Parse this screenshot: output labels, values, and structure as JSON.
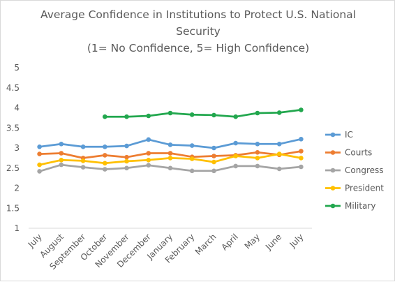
{
  "chart_data": {
    "type": "line",
    "title_lines": [
      "Average Confidence in Institutions to Protect U.S. National",
      "Security",
      "(1= No Confidence, 5= High Confidence)"
    ],
    "categories": [
      "July",
      "August",
      "September",
      "October",
      "November",
      "December",
      "January",
      "February",
      "March",
      "April",
      "May",
      "June",
      "July"
    ],
    "ylim": [
      1,
      5
    ],
    "yticks": [
      "1",
      "1.5",
      "2",
      "2.5",
      "3",
      "3.5",
      "4",
      "4.5",
      "5"
    ],
    "grid": false,
    "legend_position": "right",
    "series": [
      {
        "name": "IC",
        "color": "#5B9BD5",
        "values": [
          3.03,
          3.1,
          3.03,
          3.03,
          3.05,
          3.21,
          3.08,
          3.06,
          3.0,
          3.12,
          3.1,
          3.1,
          3.22
        ]
      },
      {
        "name": "Courts",
        "color": "#ED7D31",
        "values": [
          2.85,
          2.87,
          2.75,
          2.82,
          2.77,
          2.87,
          2.87,
          2.78,
          2.8,
          2.82,
          2.89,
          2.83,
          2.92
        ]
      },
      {
        "name": "Congress",
        "color": "#A5A5A5",
        "values": [
          2.42,
          2.58,
          2.52,
          2.47,
          2.5,
          2.57,
          2.5,
          2.43,
          2.43,
          2.55,
          2.55,
          2.48,
          2.53
        ]
      },
      {
        "name": "President",
        "color": "#FFC000",
        "values": [
          2.58,
          2.7,
          2.68,
          2.62,
          2.67,
          2.7,
          2.75,
          2.73,
          2.65,
          2.8,
          2.75,
          2.85,
          2.75
        ]
      },
      {
        "name": "Military",
        "color": "#22A74E",
        "values": [
          null,
          null,
          null,
          3.78,
          3.78,
          3.8,
          3.87,
          3.83,
          3.82,
          3.78,
          3.87,
          3.88,
          3.95
        ]
      }
    ]
  }
}
